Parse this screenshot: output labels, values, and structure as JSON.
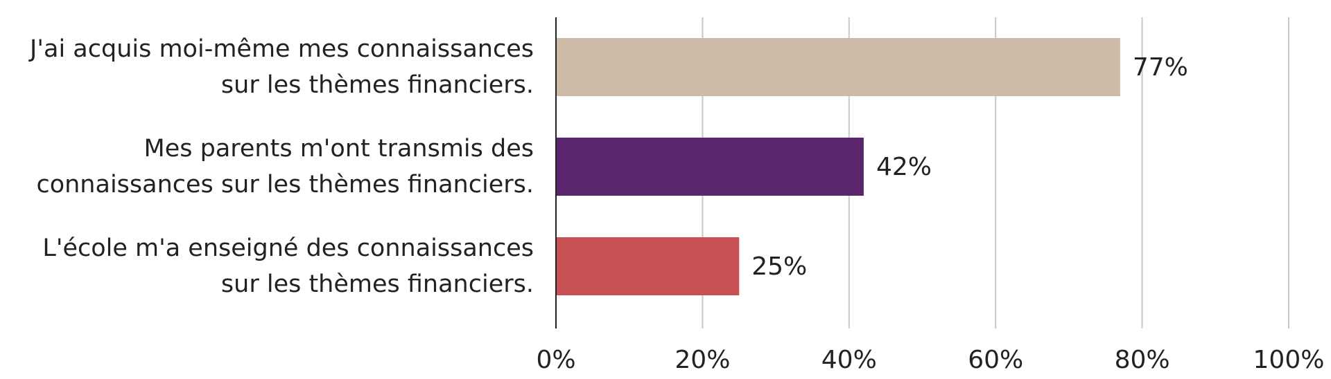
{
  "chart_data": {
    "type": "hbar",
    "categories": [
      "J'ai acquis moi-même mes connaissances\nsur les thèmes financiers.",
      "Mes parents m'ont transmis des\nconnaissances sur les thèmes financiers.",
      "L'école m'a enseigné des connaissances\nsur les thèmes financiers."
    ],
    "values": [
      77,
      42,
      25
    ],
    "value_labels": [
      "77%",
      "42%",
      "25%"
    ],
    "colors": [
      "#cdbba8",
      "#5c266e",
      "#c85156"
    ],
    "xlim": [
      0,
      100
    ],
    "xticks": [
      {
        "value": 0,
        "label": "0%"
      },
      {
        "value": 20,
        "label": "20%"
      },
      {
        "value": 40,
        "label": "40%"
      },
      {
        "value": 60,
        "label": "60%"
      },
      {
        "value": 80,
        "label": "80%"
      },
      {
        "value": 100,
        "label": "100%"
      }
    ],
    "grid": true
  }
}
